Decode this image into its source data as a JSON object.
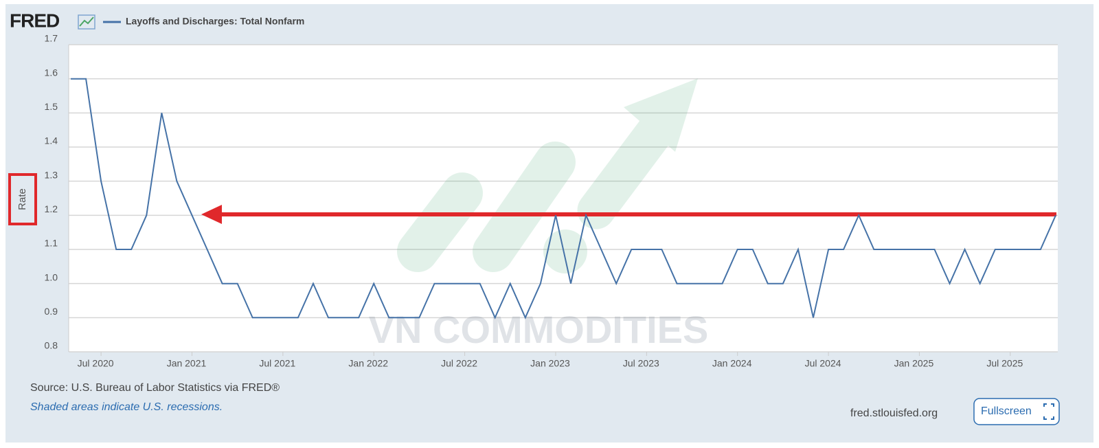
{
  "chart_data": {
    "type": "line",
    "brand": "FRED",
    "ylabel": "Rate",
    "source": "Source: U.S. Bureau of Labor Statistics via FRED®",
    "note": "Shaded areas indicate U.S. recessions.",
    "site": "fred.stlouisfed.org",
    "button": "Fullscreen",
    "watermark": "VN COMMODITIES",
    "x": [
      "2020-05",
      "2020-06",
      "2020-07",
      "2020-08",
      "2020-09",
      "2020-10",
      "2020-11",
      "2020-12",
      "2021-01",
      "2021-02",
      "2021-03",
      "2021-04",
      "2021-05",
      "2021-06",
      "2021-07",
      "2021-08",
      "2021-09",
      "2021-10",
      "2021-11",
      "2021-12",
      "2022-01",
      "2022-02",
      "2022-03",
      "2022-04",
      "2022-05",
      "2022-06",
      "2022-07",
      "2022-08",
      "2022-09",
      "2022-10",
      "2022-11",
      "2022-12",
      "2023-01",
      "2023-02",
      "2023-03",
      "2023-04",
      "2023-05",
      "2023-06",
      "2023-07",
      "2023-08",
      "2023-09",
      "2023-10",
      "2023-11",
      "2023-12",
      "2024-01",
      "2024-02",
      "2024-03",
      "2024-04",
      "2024-05",
      "2024-06",
      "2024-07",
      "2024-08",
      "2024-09",
      "2024-10",
      "2024-11",
      "2024-12",
      "2025-01",
      "2025-02",
      "2025-03",
      "2025-04",
      "2025-05",
      "2025-06",
      "2025-07",
      "2025-08",
      "2025-09",
      "2025-10"
    ],
    "series": [
      {
        "name": "Layoffs and Discharges: Total Nonfarm",
        "color": "#4572a7",
        "values": [
          1.6,
          1.6,
          1.3,
          1.1,
          1.1,
          1.2,
          1.5,
          1.3,
          1.2,
          1.1,
          1.0,
          1.0,
          0.9,
          0.9,
          0.9,
          0.9,
          1.0,
          0.9,
          0.9,
          0.9,
          1.0,
          0.9,
          0.9,
          0.9,
          1.0,
          1.0,
          1.0,
          1.0,
          0.9,
          1.0,
          0.9,
          1.0,
          1.2,
          1.0,
          1.2,
          1.1,
          1.0,
          1.1,
          1.1,
          1.1,
          1.0,
          1.0,
          1.0,
          1.0,
          1.1,
          1.1,
          1.0,
          1.0,
          1.1,
          0.9,
          1.1,
          1.1,
          1.2,
          1.1,
          1.1,
          1.1,
          1.1,
          1.1,
          1.0,
          1.1,
          1.0,
          1.1,
          1.1,
          1.1,
          1.1,
          1.2
        ]
      }
    ],
    "xlim": [
      "2020-05",
      "2025-10"
    ],
    "xticks": [
      {
        "value": "2020-07",
        "label": "Jul 2020"
      },
      {
        "value": "2021-01",
        "label": "Jan 2021"
      },
      {
        "value": "2021-07",
        "label": "Jul 2021"
      },
      {
        "value": "2022-01",
        "label": "Jan 2022"
      },
      {
        "value": "2022-07",
        "label": "Jul 2022"
      },
      {
        "value": "2023-01",
        "label": "Jan 2023"
      },
      {
        "value": "2023-07",
        "label": "Jul 2023"
      },
      {
        "value": "2024-01",
        "label": "Jan 2024"
      },
      {
        "value": "2024-07",
        "label": "Jul 2024"
      },
      {
        "value": "2025-01",
        "label": "Jan 2025"
      },
      {
        "value": "2025-07",
        "label": "Jul 2025"
      }
    ],
    "ylim": [
      0.8,
      1.7
    ],
    "yticks": [
      0.8,
      0.9,
      {
        "value": 1,
        "label": "1.0"
      },
      1.1,
      1.2,
      1.3,
      1.4,
      1.5,
      1.6,
      1.7
    ],
    "grid": true
  }
}
